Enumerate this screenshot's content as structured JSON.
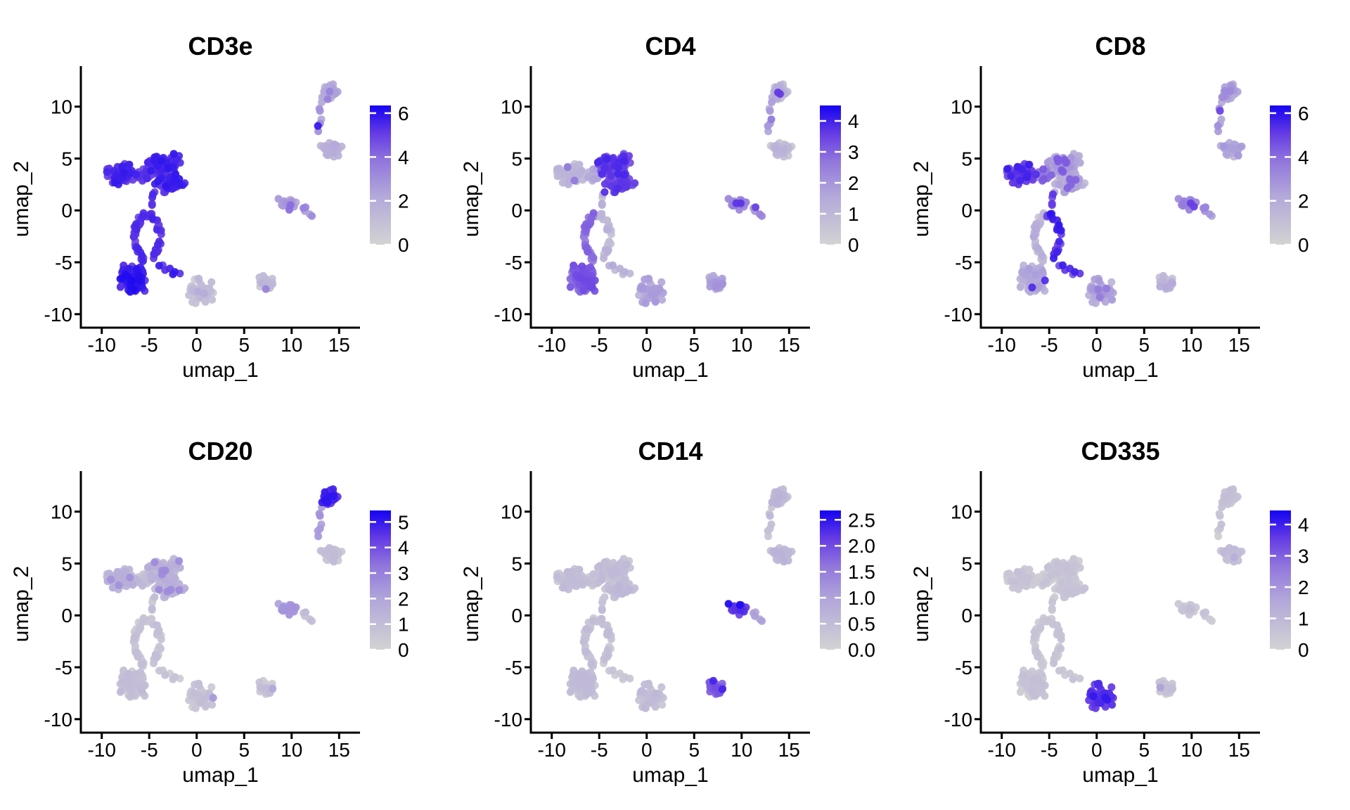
{
  "page": {
    "background": "#FFFFFF"
  },
  "chart_data": {
    "type": "scatter",
    "description": "UMAP feature plots of marker gene expression, grey-to-blue gradient",
    "grid": {
      "rows": 2,
      "cols": 3
    },
    "axes": {
      "xlabel": "umap_1",
      "ylabel": "umap_2",
      "xticks": [
        -10,
        -5,
        0,
        5,
        10,
        15
      ],
      "yticks": [
        -10,
        -5,
        0,
        5,
        10
      ],
      "xlim": [
        -12.2,
        17.2
      ],
      "ylim": [
        -11.3,
        13.5
      ],
      "grid_lines": false
    },
    "colormap": {
      "low": "#D3D3D3",
      "high": "#1503F2",
      "stops": [
        [
          0,
          "#D3D3D3"
        ],
        [
          0.35,
          "#B3A8DA"
        ],
        [
          0.6,
          "#9176DC"
        ],
        [
          0.8,
          "#653BE5"
        ],
        [
          1,
          "#1503F2"
        ]
      ]
    },
    "point": {
      "radius": 5.5,
      "opacity": 0.95
    },
    "clusters": [
      {
        "id": "tl-left",
        "kind": "blob",
        "cx": -7.9,
        "cy": 3.5,
        "rx": 1.7,
        "ry": 1.3,
        "n": 55
      },
      {
        "id": "tl-top",
        "kind": "blob",
        "cx": -3.5,
        "cy": 4.4,
        "rx": 2.1,
        "ry": 1.1,
        "n": 80
      },
      {
        "id": "tl-bot",
        "kind": "blob",
        "cx": -2.9,
        "cy": 2.6,
        "rx": 1.9,
        "ry": 1.0,
        "n": 60
      },
      {
        "id": "tl-conn",
        "kind": "blob",
        "cx": -5.5,
        "cy": 3.3,
        "rx": 0.9,
        "ry": 0.8,
        "n": 14
      },
      {
        "id": "bridge-a",
        "kind": "chain",
        "pts": [
          [
            -4.7,
            1.5
          ],
          [
            -4.5,
            0.3
          ]
        ],
        "jitter": 0.25,
        "n": 4
      },
      {
        "id": "ring-left",
        "kind": "ring",
        "cx": -5.2,
        "cy": -2.6,
        "rx": 1.35,
        "ry": 2.2,
        "a0": 95,
        "a1": 265,
        "n": 34
      },
      {
        "id": "ring-right",
        "kind": "ring",
        "cx": -5.2,
        "cy": -2.6,
        "rx": 1.35,
        "ry": 2.2,
        "a0": -85,
        "a1": 95,
        "n": 26
      },
      {
        "id": "tri",
        "kind": "blob",
        "cx": -6.7,
        "cy": -6.6,
        "rx": 1.5,
        "ry": 1.4,
        "n": 85
      },
      {
        "id": "bridge-b",
        "kind": "chain",
        "pts": [
          [
            -3.9,
            -5.2
          ],
          [
            -2.8,
            -5.8
          ],
          [
            -1.8,
            -6.3
          ]
        ],
        "jitter": 0.22,
        "n": 7
      },
      {
        "id": "bm",
        "kind": "blob",
        "cx": 0.3,
        "cy": -7.7,
        "rx": 1.5,
        "ry": 1.5,
        "n": 52
      },
      {
        "id": "br",
        "kind": "blob",
        "cx": 7.5,
        "cy": -7.0,
        "rx": 1.15,
        "ry": 0.75,
        "n": 26
      },
      {
        "id": "mr",
        "kind": "blob",
        "cx": 9.6,
        "cy": 0.6,
        "rx": 1.05,
        "ry": 0.7,
        "n": 24
      },
      {
        "id": "mr-sat",
        "kind": "chain",
        "pts": [
          [
            11.2,
            0.2
          ],
          [
            12.1,
            -0.4
          ]
        ],
        "jitter": 0.3,
        "n": 5
      },
      {
        "id": "tr",
        "kind": "blob",
        "cx": 14.0,
        "cy": 11.4,
        "rx": 1.2,
        "ry": 0.85,
        "n": 34
      },
      {
        "id": "tr-chain",
        "kind": "chain",
        "pts": [
          [
            13.3,
            10.4
          ],
          [
            12.9,
            9.0
          ],
          [
            13.0,
            7.6
          ]
        ],
        "jitter": 0.25,
        "n": 7
      },
      {
        "id": "r2",
        "kind": "blob",
        "cx": 14.1,
        "cy": 5.9,
        "rx": 1.25,
        "ry": 0.8,
        "n": 32
      }
    ],
    "panels": [
      {
        "title": "CD3e",
        "legend_ticks": [
          "0",
          "2",
          "4",
          "6"
        ],
        "legend_tick_values": [
          0,
          2,
          4,
          6
        ],
        "legend_max": 6.35,
        "noise": 0.6,
        "expression": {
          "tl-left": 5.3,
          "tl-top": 5.3,
          "tl-bot": 5.3,
          "tl-conn": 5.0,
          "bridge-a": 5.0,
          "ring-left": 5.2,
          "ring-right": 5.2,
          "tri": 5.6,
          "bridge-b": 5.3,
          "bm": 0.9,
          "br": 1.1,
          "mr": 2.3,
          "mr-sat": 2.9,
          "tr": 1.9,
          "tr-chain": 2.6,
          "r2": 1.5
        },
        "hot": {
          "br": [
            1,
            3.4
          ],
          "mr": [
            2,
            4.0
          ],
          "tr": [
            2,
            3.4
          ],
          "tr-chain": [
            1,
            5.8
          ],
          "bm": [
            2,
            2.0
          ]
        }
      },
      {
        "title": "CD4",
        "legend_ticks": [
          "0",
          "1",
          "2",
          "3",
          "4"
        ],
        "legend_tick_values": [
          0,
          1,
          2,
          3,
          4
        ],
        "legend_max": 4.5,
        "noise": 0.45,
        "expression": {
          "tl-left": 0.85,
          "tl-top": 3.5,
          "tl-bot": 3.4,
          "tl-conn": 1.3,
          "bridge-a": 0.9,
          "ring-left": 2.6,
          "ring-right": 0.9,
          "tri": 3.0,
          "bridge-b": 1.1,
          "bm": 1.5,
          "br": 1.7,
          "mr": 2.3,
          "mr-sat": 2.0,
          "tr": 1.1,
          "tr-chain": 1.6,
          "r2": 0.8
        },
        "hot": {
          "tl-left": [
            2,
            2.6
          ],
          "mr": [
            2,
            3.7
          ],
          "mr-sat": [
            1,
            3.5
          ],
          "tr": [
            2,
            3.6
          ],
          "tr-chain": [
            1,
            2.6
          ]
        }
      },
      {
        "title": "CD8",
        "legend_ticks": [
          "0",
          "2",
          "4",
          "6"
        ],
        "legend_tick_values": [
          0,
          2,
          4,
          6
        ],
        "legend_max": 6.35,
        "noise": 0.85,
        "expression": {
          "tl-left": 5.0,
          "tl-top": 2.0,
          "tl-bot": 1.8,
          "tl-conn": 3.6,
          "bridge-a": 4.5,
          "ring-left": 1.3,
          "ring-right": 5.2,
          "tri": 1.7,
          "bridge-b": 5.0,
          "bm": 2.0,
          "br": 1.3,
          "mr": 3.0,
          "mr-sat": 2.6,
          "tr": 2.4,
          "tr-chain": 2.8,
          "r2": 2.0
        },
        "hot": {
          "tl-top": [
            7,
            4.4
          ],
          "tl-bot": [
            4,
            4.2
          ],
          "tri": [
            2,
            5.4
          ],
          "bm": [
            3,
            3.6
          ],
          "mr": [
            2,
            5.0
          ],
          "tr-chain": [
            1,
            4.8
          ]
        }
      },
      {
        "title": "CD20",
        "legend_ticks": [
          "0",
          "1",
          "2",
          "3",
          "4",
          "5"
        ],
        "legend_tick_values": [
          0,
          1,
          2,
          3,
          4,
          5
        ],
        "legend_max": 5.45,
        "noise": 0.4,
        "expression": {
          "tl-left": 1.3,
          "tl-top": 1.3,
          "tl-bot": 1.3,
          "tl-conn": 0.9,
          "bridge-a": 0.7,
          "ring-left": 0.6,
          "ring-right": 0.6,
          "tri": 0.7,
          "bridge-b": 0.6,
          "bm": 0.6,
          "br": 0.6,
          "mr": 2.2,
          "mr-sat": 1.0,
          "tr": 4.6,
          "tr-chain": 2.4,
          "r2": 0.7
        },
        "hot": {
          "tl-top": [
            6,
            2.7
          ],
          "tl-bot": [
            4,
            2.7
          ],
          "tl-left": [
            3,
            2.5
          ],
          "bm": [
            1,
            2.3
          ],
          "br": [
            1,
            1.9
          ],
          "tr": [
            5,
            5.1
          ]
        }
      },
      {
        "title": "CD14",
        "legend_ticks": [
          "0.0",
          "0.5",
          "1.0",
          "1.5",
          "2.0",
          "2.5"
        ],
        "legend_tick_values": [
          0,
          0.5,
          1.0,
          1.5,
          2.0,
          2.5
        ],
        "legend_max": 2.68,
        "noise": 0.18,
        "expression": {
          "tl-left": 0.4,
          "tl-top": 0.4,
          "tl-bot": 0.45,
          "tl-conn": 0.35,
          "bridge-a": 0.35,
          "ring-left": 0.35,
          "ring-right": 0.35,
          "tri": 0.42,
          "bridge-b": 0.35,
          "bm": 0.42,
          "br": 1.85,
          "mr": 2.15,
          "mr-sat": 0.9,
          "tr": 0.55,
          "tr-chain": 0.45,
          "r2": 0.55
        },
        "hot": {
          "mr": [
            2,
            2.6
          ],
          "br": [
            2,
            2.35
          ]
        }
      },
      {
        "title": "CD335",
        "legend_ticks": [
          "0",
          "1",
          "2",
          "3",
          "4"
        ],
        "legend_tick_values": [
          0,
          1,
          2,
          3,
          4
        ],
        "legend_max": 4.45,
        "noise": 0.28,
        "expression": {
          "tl-left": 0.4,
          "tl-top": 0.4,
          "tl-bot": 0.4,
          "tl-conn": 0.35,
          "bridge-a": 0.35,
          "ring-left": 0.4,
          "ring-right": 0.4,
          "tri": 0.45,
          "bridge-b": 0.4,
          "bm": 3.6,
          "br": 0.5,
          "mr": 0.5,
          "mr-sat": 0.45,
          "tr": 0.5,
          "tr-chain": 0.45,
          "r2": 0.65
        },
        "hot": {
          "br": [
            1,
            1.7
          ],
          "bm": [
            3,
            4.1
          ],
          "r2": [
            1,
            1.3
          ]
        }
      }
    ]
  }
}
